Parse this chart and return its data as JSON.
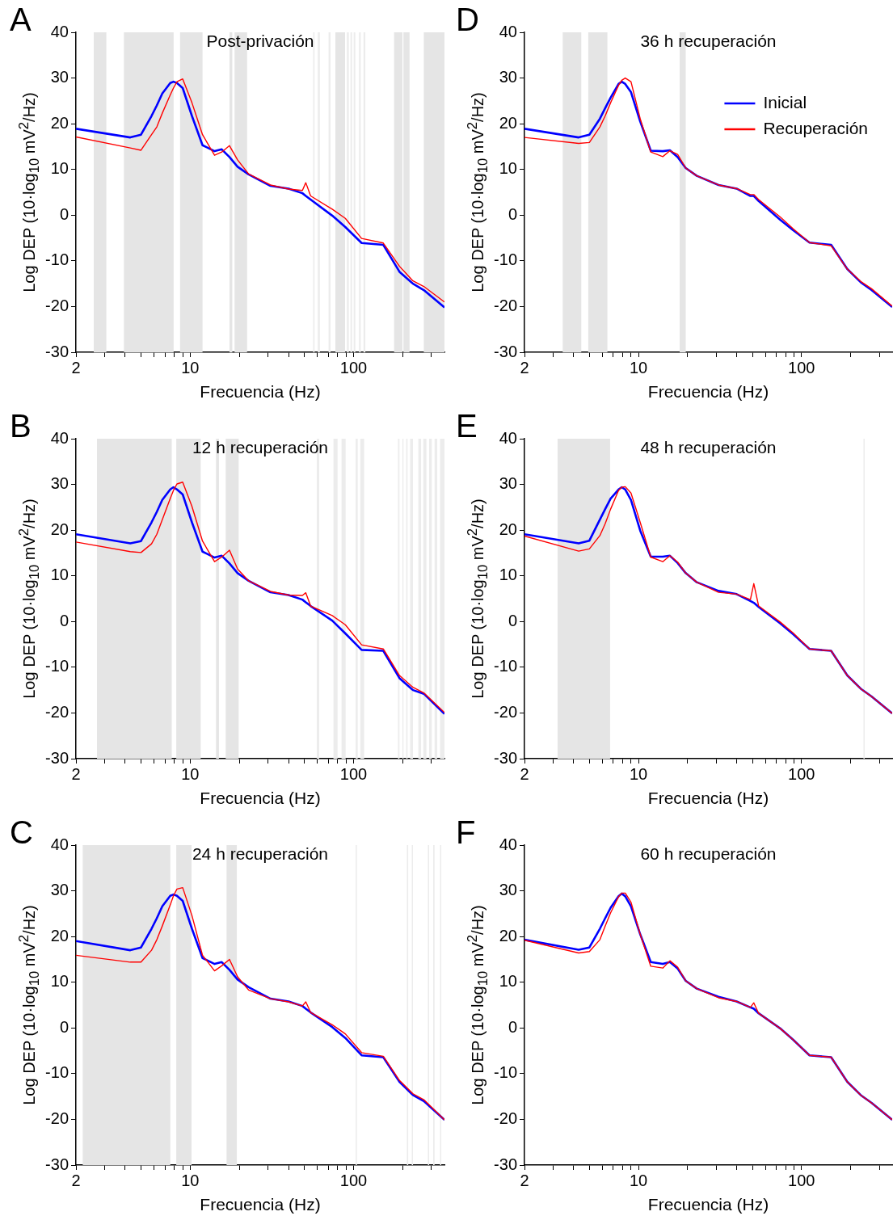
{
  "chart_data": [
    {
      "type": "line",
      "title": "Post-privación",
      "xlabel": "Frecuencia (Hz)",
      "ylabel": "Log DEP (10·log$_{10}$ mV$^{2}$/Hz)",
      "annotations": [
        "A"
      ],
      "log": "x",
      "xlim": [
        2,
        360
      ],
      "ylim": [
        -30,
        40
      ],
      "xticks": [
        2,
        {
          "value": 3,
          "label": null
        },
        {
          "value": 4,
          "label": null
        },
        {
          "value": 5,
          "label": null
        },
        {
          "value": 6,
          "label": null
        },
        {
          "value": 7,
          "label": null
        },
        {
          "value": 8,
          "label": null
        },
        {
          "value": 9,
          "label": null
        },
        10,
        {
          "value": 20,
          "label": null
        },
        {
          "value": 30,
          "label": null
        },
        {
          "value": 40,
          "label": null
        },
        {
          "value": 50,
          "label": null
        },
        {
          "value": 60,
          "label": null
        },
        {
          "value": 70,
          "label": null
        },
        {
          "value": 80,
          "label": null
        },
        {
          "value": 90,
          "label": null
        },
        100,
        {
          "value": 200,
          "label": null
        },
        {
          "value": 300,
          "label": null
        }
      ],
      "yticks": [
        -30,
        -20,
        -10,
        0,
        10,
        20,
        30,
        40
      ],
      "line_style": "solid",
      "x": [
        2,
        4.3,
        5,
        5.8,
        6.25,
        6.75,
        7.55,
        7.9,
        8.3,
        9,
        10.25,
        11.9,
        14.1,
        15.6,
        17.4,
        19.5,
        22.8,
        31,
        40,
        48.6,
        51,
        54.6,
        74,
        89,
        112,
        152,
        191,
        231,
        269,
        360
      ],
      "series": [
        {
          "color": "#0000ff",
          "values": [
            18.9,
            17.0,
            17.6,
            21.7,
            24.0,
            26.6,
            28.9,
            29.2,
            28.9,
            27.8,
            21.7,
            15.3,
            14.0,
            14.4,
            12.7,
            10.6,
            8.9,
            6.4,
            5.8,
            4.8,
            4.2,
            3.4,
            -0.1,
            -2.6,
            -6.1,
            -6.5,
            -12.4,
            -15.0,
            -16.4,
            -20.2
          ]
        },
        {
          "color": "#ff0000",
          "values": [
            17.1,
            14.7,
            14.2,
            17.6,
            19.3,
            22.3,
            26.3,
            27.8,
            29.2,
            29.8,
            24.6,
            17.6,
            13.1,
            13.8,
            15.2,
            12.1,
            9.0,
            6.6,
            5.7,
            5.4,
            7.1,
            4.2,
            1.3,
            -0.7,
            -5.1,
            -6.1,
            -11.2,
            -14.4,
            -15.6,
            -19.0
          ]
        }
      ],
      "bands": [
        {
          "axis": "x",
          "from": 2.57,
          "to": 3.07,
          "color": "#e5e5e5"
        },
        {
          "axis": "x",
          "from": 3.93,
          "to": 7.92,
          "color": "#e5e5e5"
        },
        {
          "axis": "x",
          "from": 8.67,
          "to": 11.9,
          "color": "#e5e5e5"
        },
        {
          "axis": "x",
          "from": 17.4,
          "to": 18.1,
          "color": "#e5e5e5"
        },
        {
          "axis": "x",
          "from": 18.7,
          "to": 22.3,
          "color": "#e5e5e5"
        },
        {
          "axis": "x",
          "from": 56.6,
          "to": 57.7,
          "color": "#ececec"
        },
        {
          "axis": "x",
          "from": 60.4,
          "to": 62.2,
          "color": "#ececec"
        },
        {
          "axis": "x",
          "from": 70.3,
          "to": 72.3,
          "color": "#ececec"
        },
        {
          "axis": "x",
          "from": 77.4,
          "to": 88.7,
          "color": "#e5e5e5"
        },
        {
          "axis": "x",
          "from": 91,
          "to": 93.5,
          "color": "#ececec"
        },
        {
          "axis": "x",
          "from": 95.7,
          "to": 97.9,
          "color": "#ececec"
        },
        {
          "axis": "x",
          "from": 100.2,
          "to": 102.5,
          "color": "#ececec"
        },
        {
          "axis": "x",
          "from": 108,
          "to": 110.6,
          "color": "#ececec"
        },
        {
          "axis": "x",
          "from": 115,
          "to": 118,
          "color": "#ececec"
        },
        {
          "axis": "x",
          "from": 177,
          "to": 199,
          "color": "#e5e5e5"
        },
        {
          "axis": "x",
          "from": 202,
          "to": 220,
          "color": "#e5e5e5"
        },
        {
          "axis": "x",
          "from": 269,
          "to": 360,
          "color": "#e5e5e5"
        }
      ]
    },
    {
      "type": "line",
      "title": "12 h recuperación",
      "xlabel": "Frecuencia (Hz)",
      "ylabel": "Log DEP (10·log$_{10}$ mV$^{2}$/Hz)",
      "annotations": [
        "B"
      ],
      "log": "x",
      "xlim": [
        2,
        360
      ],
      "ylim": [
        -30,
        40
      ],
      "xticks": [
        2,
        {
          "value": 3,
          "label": null
        },
        {
          "value": 4,
          "label": null
        },
        {
          "value": 5,
          "label": null
        },
        {
          "value": 6,
          "label": null
        },
        {
          "value": 7,
          "label": null
        },
        {
          "value": 8,
          "label": null
        },
        {
          "value": 9,
          "label": null
        },
        10,
        {
          "value": 20,
          "label": null
        },
        {
          "value": 30,
          "label": null
        },
        {
          "value": 40,
          "label": null
        },
        {
          "value": 50,
          "label": null
        },
        {
          "value": 60,
          "label": null
        },
        {
          "value": 70,
          "label": null
        },
        {
          "value": 80,
          "label": null
        },
        {
          "value": 90,
          "label": null
        },
        100,
        {
          "value": 200,
          "label": null
        },
        {
          "value": 300,
          "label": null
        }
      ],
      "yticks": [
        -30,
        -20,
        -10,
        0,
        10,
        20,
        30,
        40
      ],
      "line_style": "solid",
      "x": [
        2,
        4.3,
        5,
        5.8,
        6.25,
        6.75,
        7.55,
        7.9,
        8.3,
        9,
        10.25,
        11.9,
        14.1,
        15.6,
        17.4,
        19.5,
        22.8,
        31,
        40,
        48.6,
        51,
        54.6,
        74,
        89,
        112,
        152,
        191,
        231,
        269,
        360
      ],
      "series": [
        {
          "color": "#0000ff",
          "values": [
            19.1,
            17.1,
            17.6,
            21.7,
            24.0,
            26.6,
            28.9,
            29.4,
            28.9,
            27.8,
            21.7,
            15.3,
            14.0,
            14.4,
            12.7,
            10.6,
            8.9,
            6.4,
            5.8,
            4.8,
            4.2,
            3.4,
            0.2,
            -2.6,
            -6.2,
            -6.4,
            -12.4,
            -15.0,
            -15.8,
            -20.2
          ]
        },
        {
          "color": "#ff0000",
          "values": [
            17.4,
            15.3,
            15.1,
            17.0,
            19.1,
            22.3,
            26.9,
            28.7,
            30.1,
            30.5,
            25.2,
            17.6,
            13.1,
            14.1,
            15.6,
            11.5,
            8.9,
            6.6,
            5.8,
            5.7,
            6.3,
            3.4,
            1.3,
            -0.7,
            -5.1,
            -6.0,
            -11.8,
            -14.4,
            -15.6,
            -19.9
          ]
        }
      ],
      "bands": [
        {
          "axis": "x",
          "from": 2.69,
          "to": 7.71,
          "color": "#e5e5e5"
        },
        {
          "axis": "x",
          "from": 8.22,
          "to": 11.6,
          "color": "#e5e5e5"
        },
        {
          "axis": "x",
          "from": 14.4,
          "to": 15.0,
          "color": "#e5e5e5"
        },
        {
          "axis": "x",
          "from": 16.5,
          "to": 19.8,
          "color": "#e5e5e5"
        },
        {
          "axis": "x",
          "from": 59.5,
          "to": 61.6,
          "color": "#ececec"
        },
        {
          "axis": "x",
          "from": 75.3,
          "to": 79.8,
          "color": "#ececec"
        },
        {
          "axis": "x",
          "from": 84.4,
          "to": 89.4,
          "color": "#ececec"
        },
        {
          "axis": "x",
          "from": 103,
          "to": 106,
          "color": "#ececec"
        },
        {
          "axis": "x",
          "from": 110,
          "to": 116,
          "color": "#ececec"
        },
        {
          "axis": "x",
          "from": 187,
          "to": 191,
          "color": "#ececec"
        },
        {
          "axis": "x",
          "from": 199,
          "to": 202,
          "color": "#ececec"
        },
        {
          "axis": "x",
          "from": 210,
          "to": 214,
          "color": "#ececec"
        },
        {
          "axis": "x",
          "from": 222,
          "to": 231,
          "color": "#ececec"
        },
        {
          "axis": "x",
          "from": 249,
          "to": 259,
          "color": "#ececec"
        },
        {
          "axis": "x",
          "from": 267,
          "to": 279,
          "color": "#ececec"
        },
        {
          "axis": "x",
          "from": 290,
          "to": 301,
          "color": "#ececec"
        },
        {
          "axis": "x",
          "from": 313,
          "to": 325,
          "color": "#ececec"
        },
        {
          "axis": "x",
          "from": 338,
          "to": 360,
          "color": "#ececec"
        }
      ]
    },
    {
      "type": "line",
      "title": "24 h recuperación",
      "xlabel": "Frecuencia (Hz)",
      "ylabel": "Log DEP (10·log$_{10}$ mV$^{2}$/Hz)",
      "annotations": [
        "C"
      ],
      "log": "x",
      "xlim": [
        2,
        360
      ],
      "ylim": [
        -30,
        40
      ],
      "xticks": [
        2,
        {
          "value": 3,
          "label": null
        },
        {
          "value": 4,
          "label": null
        },
        {
          "value": 5,
          "label": null
        },
        {
          "value": 6,
          "label": null
        },
        {
          "value": 7,
          "label": null
        },
        {
          "value": 8,
          "label": null
        },
        {
          "value": 9,
          "label": null
        },
        10,
        {
          "value": 20,
          "label": null
        },
        {
          "value": 30,
          "label": null
        },
        {
          "value": 40,
          "label": null
        },
        {
          "value": 50,
          "label": null
        },
        {
          "value": 60,
          "label": null
        },
        {
          "value": 70,
          "label": null
        },
        {
          "value": 80,
          "label": null
        },
        {
          "value": 90,
          "label": null
        },
        100,
        {
          "value": 200,
          "label": null
        },
        {
          "value": 300,
          "label": null
        }
      ],
      "yticks": [
        -30,
        -20,
        -10,
        0,
        10,
        20,
        30,
        40
      ],
      "line_style": "solid",
      "x": [
        2,
        4.3,
        5,
        5.8,
        6.25,
        6.75,
        7.55,
        7.9,
        8.3,
        9,
        10.25,
        11.9,
        14.1,
        15.6,
        17.4,
        19.5,
        22.8,
        31,
        40,
        48.6,
        51,
        54.6,
        74,
        89,
        112,
        152,
        191,
        231,
        269,
        360
      ],
      "series": [
        {
          "color": "#0000ff",
          "values": [
            19.0,
            17.0,
            17.6,
            21.7,
            24.0,
            26.6,
            28.9,
            29.2,
            28.9,
            27.8,
            21.7,
            15.3,
            14.0,
            14.4,
            12.7,
            10.6,
            8.9,
            6.4,
            5.8,
            4.8,
            4.2,
            3.4,
            0.2,
            -2.2,
            -6.0,
            -6.4,
            -11.8,
            -14.7,
            -16.0,
            -20.1
          ]
        },
        {
          "color": "#ff0000",
          "values": [
            15.9,
            14.4,
            14.4,
            17.0,
            19.3,
            22.3,
            26.9,
            28.9,
            30.4,
            30.7,
            24.6,
            15.9,
            12.5,
            13.6,
            15.0,
            11.2,
            8.3,
            6.4,
            5.7,
            4.8,
            5.7,
            3.4,
            0.7,
            -1.3,
            -5.4,
            -6.2,
            -11.5,
            -14.4,
            -15.7,
            -20.1
          ]
        }
      ],
      "bands": [
        {
          "axis": "x",
          "from": 2.2,
          "to": 7.56,
          "color": "#e5e5e5"
        },
        {
          "axis": "x",
          "from": 8.22,
          "to": 10.2,
          "color": "#e5e5e5"
        },
        {
          "axis": "x",
          "from": 16.7,
          "to": 19.3,
          "color": "#e5e5e5"
        },
        {
          "axis": "x",
          "from": 103,
          "to": 104.8,
          "color": "#ececec"
        },
        {
          "axis": "x",
          "from": 212,
          "to": 216,
          "color": "#ececec"
        },
        {
          "axis": "x",
          "from": 227,
          "to": 231,
          "color": "#ececec"
        },
        {
          "axis": "x",
          "from": 285,
          "to": 290,
          "color": "#ececec"
        },
        {
          "axis": "x",
          "from": 307,
          "to": 313,
          "color": "#ececec"
        },
        {
          "axis": "x",
          "from": 338,
          "to": 344,
          "color": "#ececec"
        }
      ]
    },
    {
      "type": "line",
      "title": "36 h recuperación",
      "xlabel": "Frecuencia (Hz)",
      "ylabel": "Log DEP (10·log$_{10}$ mV$^{2}$/Hz)",
      "annotations": [
        "D"
      ],
      "log": "x",
      "xlim": [
        2,
        360
      ],
      "ylim": [
        -30,
        40
      ],
      "legend": "top right",
      "xticks": [
        2,
        {
          "value": 3,
          "label": null
        },
        {
          "value": 4,
          "label": null
        },
        {
          "value": 5,
          "label": null
        },
        {
          "value": 6,
          "label": null
        },
        {
          "value": 7,
          "label": null
        },
        {
          "value": 8,
          "label": null
        },
        {
          "value": 9,
          "label": null
        },
        10,
        {
          "value": 20,
          "label": null
        },
        {
          "value": 30,
          "label": null
        },
        {
          "value": 40,
          "label": null
        },
        {
          "value": 50,
          "label": null
        },
        {
          "value": 60,
          "label": null
        },
        {
          "value": 70,
          "label": null
        },
        {
          "value": 80,
          "label": null
        },
        {
          "value": 90,
          "label": null
        },
        100,
        {
          "value": 200,
          "label": null
        },
        {
          "value": 300,
          "label": null
        }
      ],
      "yticks": [
        -30,
        -20,
        -10,
        0,
        10,
        20,
        30,
        40
      ],
      "line_style": "solid",
      "x": [
        2,
        4.3,
        5,
        5.8,
        6.25,
        6.75,
        7.55,
        7.9,
        8.3,
        9,
        10.25,
        11.9,
        14.1,
        15.6,
        17.4,
        19.5,
        22.8,
        31,
        40,
        48.6,
        51,
        54.6,
        74,
        89,
        112,
        152,
        191,
        231,
        269,
        360
      ],
      "series": [
        {
          "name": "Inicial",
          "color": "#0000ff",
          "values": [
            18.9,
            17.0,
            17.6,
            21.1,
            23.4,
            25.7,
            28.7,
            29.2,
            28.7,
            26.9,
            20.5,
            14.1,
            14.0,
            14.2,
            12.7,
            10.3,
            8.6,
            6.6,
            5.8,
            4.2,
            4.2,
            3.1,
            -1.0,
            -3.3,
            -6.0,
            -6.5,
            -11.8,
            -14.7,
            -16.4,
            -20.1
          ]
        },
        {
          "name": "Recuperación",
          "color": "#ff0000",
          "values": [
            17.0,
            15.7,
            15.9,
            19.3,
            21.7,
            24.6,
            28.4,
            29.5,
            30.0,
            29.2,
            21.1,
            13.8,
            12.8,
            14.1,
            13.3,
            10.3,
            8.6,
            6.6,
            5.8,
            4.5,
            4.5,
            3.4,
            -0.4,
            -3.0,
            -6.0,
            -6.7,
            -11.8,
            -14.5,
            -16.1,
            -19.9
          ]
        }
      ],
      "bands": [
        {
          "axis": "x",
          "from": 3.43,
          "to": 4.46,
          "color": "#e5e5e5"
        },
        {
          "axis": "x",
          "from": 4.92,
          "to": 6.45,
          "color": "#e5e5e5"
        },
        {
          "axis": "x",
          "from": 17.9,
          "to": 19.5,
          "color": "#e5e5e5"
        }
      ]
    },
    {
      "type": "line",
      "title": "48 h recuperación",
      "xlabel": "Frecuencia (Hz)",
      "ylabel": "Log DEP (10·log$_{10}$ mV$^{2}$/Hz)",
      "annotations": [
        "E"
      ],
      "log": "x",
      "xlim": [
        2,
        360
      ],
      "ylim": [
        -30,
        40
      ],
      "xticks": [
        2,
        {
          "value": 3,
          "label": null
        },
        {
          "value": 4,
          "label": null
        },
        {
          "value": 5,
          "label": null
        },
        {
          "value": 6,
          "label": null
        },
        {
          "value": 7,
          "label": null
        },
        {
          "value": 8,
          "label": null
        },
        {
          "value": 9,
          "label": null
        },
        10,
        {
          "value": 20,
          "label": null
        },
        {
          "value": 30,
          "label": null
        },
        {
          "value": 40,
          "label": null
        },
        {
          "value": 50,
          "label": null
        },
        {
          "value": 60,
          "label": null
        },
        {
          "value": 70,
          "label": null
        },
        {
          "value": 80,
          "label": null
        },
        {
          "value": 90,
          "label": null
        },
        100,
        {
          "value": 200,
          "label": null
        },
        {
          "value": 300,
          "label": null
        }
      ],
      "yticks": [
        -30,
        -20,
        -10,
        0,
        10,
        20,
        30,
        40
      ],
      "line_style": "solid",
      "x": [
        2,
        4.3,
        5,
        5.8,
        6.25,
        6.75,
        7.55,
        7.9,
        8.3,
        9,
        10.25,
        11.9,
        14.1,
        15.6,
        17.4,
        19.5,
        22.8,
        31,
        40,
        48.6,
        51,
        54.6,
        74,
        89,
        112,
        152,
        191,
        231,
        269,
        360
      ],
      "series": [
        {
          "color": "#0000ff",
          "values": [
            19.1,
            17.1,
            17.7,
            22.3,
            24.6,
            26.9,
            28.9,
            29.4,
            28.9,
            26.6,
            19.9,
            14.2,
            14.2,
            14.4,
            12.8,
            10.6,
            8.6,
            6.7,
            6.0,
            4.5,
            4.1,
            3.2,
            -0.4,
            -2.8,
            -6.0,
            -6.4,
            -11.8,
            -14.7,
            -16.4,
            -20.1
          ]
        },
        {
          "color": "#ff0000",
          "values": [
            18.7,
            15.4,
            15.9,
            18.8,
            21.4,
            24.6,
            28.7,
            29.4,
            29.5,
            28.1,
            21.7,
            14.1,
            13.1,
            14.4,
            13.0,
            10.6,
            8.6,
            6.4,
            6.0,
            4.8,
            8.3,
            3.4,
            -0.1,
            -2.5,
            -6.0,
            -6.4,
            -11.8,
            -14.7,
            -16.4,
            -20.1
          ]
        }
      ],
      "bands": [
        {
          "axis": "x",
          "from": 3.19,
          "to": 6.7,
          "color": "#e5e5e5"
        },
        {
          "axis": "x",
          "from": 240,
          "to": 244,
          "color": "#ececec"
        }
      ]
    },
    {
      "type": "line",
      "title": "60 h recuperación",
      "xlabel": "Frecuencia (Hz)",
      "ylabel": "Log DEP (10·log$_{10}$ mV$^{2}$/Hz)",
      "annotations": [
        "F"
      ],
      "log": "x",
      "xlim": [
        2,
        360
      ],
      "ylim": [
        -30,
        40
      ],
      "xticks": [
        2,
        {
          "value": 3,
          "label": null
        },
        {
          "value": 4,
          "label": null
        },
        {
          "value": 5,
          "label": null
        },
        {
          "value": 6,
          "label": null
        },
        {
          "value": 7,
          "label": null
        },
        {
          "value": 8,
          "label": null
        },
        {
          "value": 9,
          "label": null
        },
        10,
        {
          "value": 20,
          "label": null
        },
        {
          "value": 30,
          "label": null
        },
        {
          "value": 40,
          "label": null
        },
        {
          "value": 50,
          "label": null
        },
        {
          "value": 60,
          "label": null
        },
        {
          "value": 70,
          "label": null
        },
        {
          "value": 80,
          "label": null
        },
        {
          "value": 90,
          "label": null
        },
        100,
        {
          "value": 200,
          "label": null
        },
        {
          "value": 300,
          "label": null
        }
      ],
      "yticks": [
        -30,
        -20,
        -10,
        0,
        10,
        20,
        30,
        40
      ],
      "line_style": "solid",
      "x": [
        2,
        4.3,
        5,
        5.8,
        6.25,
        6.75,
        7.55,
        7.9,
        8.3,
        9,
        10.25,
        11.9,
        14.1,
        15.6,
        17.4,
        19.5,
        22.8,
        31,
        40,
        48.6,
        51,
        54.6,
        74,
        89,
        112,
        152,
        191,
        231,
        269,
        360
      ],
      "series": [
        {
          "color": "#0000ff",
          "values": [
            19.3,
            17.1,
            17.6,
            21.7,
            24.0,
            26.3,
            28.8,
            29.4,
            28.8,
            26.6,
            20.5,
            14.4,
            14.0,
            14.4,
            13.0,
            10.3,
            8.6,
            6.8,
            5.8,
            4.5,
            4.2,
            3.2,
            -0.1,
            -2.6,
            -6.0,
            -6.4,
            -11.8,
            -14.7,
            -16.4,
            -20.1
          ]
        },
        {
          "color": "#ff0000",
          "values": [
            19.2,
            16.4,
            16.7,
            19.3,
            22.3,
            25.2,
            28.7,
            29.5,
            29.5,
            27.5,
            20.5,
            13.5,
            13.1,
            14.7,
            13.3,
            10.3,
            8.6,
            6.6,
            5.8,
            4.5,
            5.5,
            3.2,
            -0.1,
            -2.6,
            -6.0,
            -6.4,
            -11.8,
            -14.7,
            -16.4,
            -20.1
          ]
        }
      ]
    }
  ]
}
